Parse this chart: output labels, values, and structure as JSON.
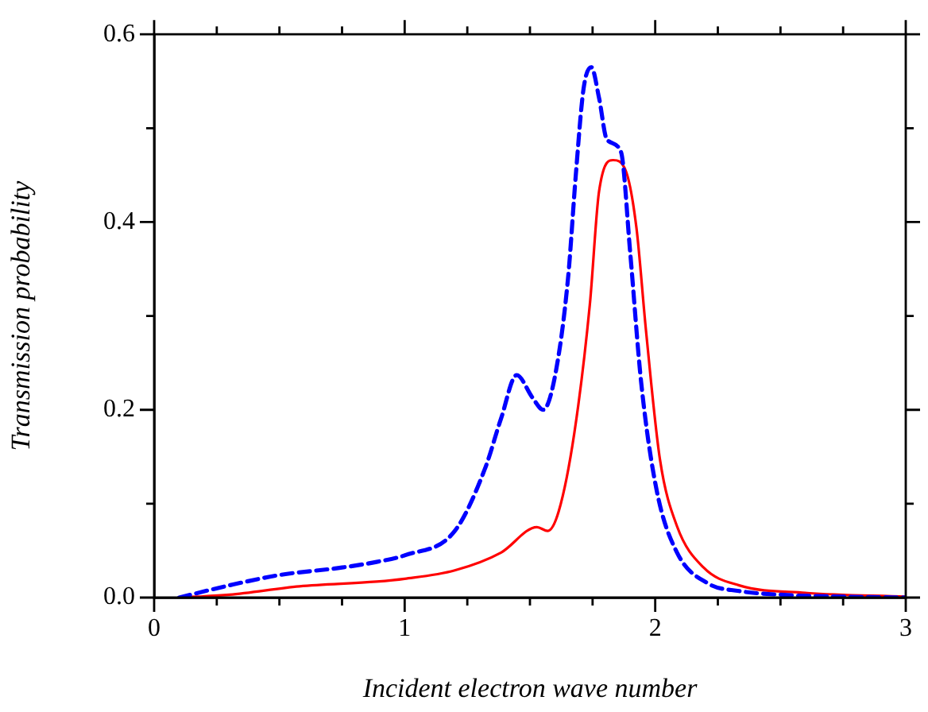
{
  "chart_data": {
    "type": "line",
    "xlabel": "Incident electron wave number",
    "ylabel": "Transmission probability",
    "xlim": [
      0,
      3
    ],
    "ylim": [
      0,
      0.6
    ],
    "xticks": [
      0,
      {
        "value": 0.25,
        "label": null
      },
      {
        "value": 0.5,
        "label": null
      },
      {
        "value": 0.75,
        "label": null
      },
      1,
      {
        "value": 1.25,
        "label": null
      },
      {
        "value": 1.5,
        "label": null
      },
      {
        "value": 1.75,
        "label": null
      },
      2,
      {
        "value": 2.25,
        "label": null
      },
      {
        "value": 2.5,
        "label": null
      },
      {
        "value": 2.75,
        "label": null
      },
      3
    ],
    "yticks": [
      {
        "value": 0,
        "label": "0.0"
      },
      {
        "value": 0.1,
        "label": null
      },
      0.2,
      {
        "value": 0.3,
        "label": null
      },
      0.4,
      {
        "value": 0.5,
        "label": null
      },
      0.6
    ],
    "grid": false,
    "legend": false,
    "marker": "none",
    "series": [
      {
        "color": "#0000ff",
        "line_style": "dashed",
        "x": [
          0.1,
          0.3,
          0.5,
          0.75,
          0.888,
          1.0,
          1.2,
          1.32,
          1.385,
          1.447,
          1.51,
          1.553,
          1.6,
          1.652,
          1.683,
          1.714,
          1.745,
          1.776,
          1.807,
          1.863,
          1.9,
          1.944,
          2.006,
          2.087,
          2.211,
          2.335,
          2.5,
          2.75,
          3.0
        ],
        "values": [
          0,
          0.013,
          0.024,
          0.032,
          0.038,
          0.045,
          0.071,
          0.137,
          0.191,
          0.237,
          0.213,
          0.2,
          0.236,
          0.34,
          0.45,
          0.542,
          0.565,
          0.532,
          0.488,
          0.475,
          0.368,
          0.229,
          0.114,
          0.048,
          0.015,
          0.007,
          0.003,
          0.001,
          0
        ]
      },
      {
        "color": "#ff0000",
        "line_style": "solid",
        "x": [
          0.1,
          0.3,
          0.58,
          0.888,
          1.0,
          1.2,
          1.385,
          1.528,
          1.571,
          1.615,
          1.677,
          1.739,
          1.776,
          1.832,
          1.882,
          1.925,
          1.963,
          2.019,
          2.087,
          2.193,
          2.335,
          2.6,
          3.0
        ],
        "values": [
          0,
          0.003,
          0.012,
          0.017,
          0.02,
          0.029,
          0.048,
          0.075,
          0.071,
          0.092,
          0.175,
          0.312,
          0.433,
          0.466,
          0.455,
          0.394,
          0.285,
          0.147,
          0.076,
          0.032,
          0.013,
          0.005,
          0.001
        ]
      }
    ]
  }
}
